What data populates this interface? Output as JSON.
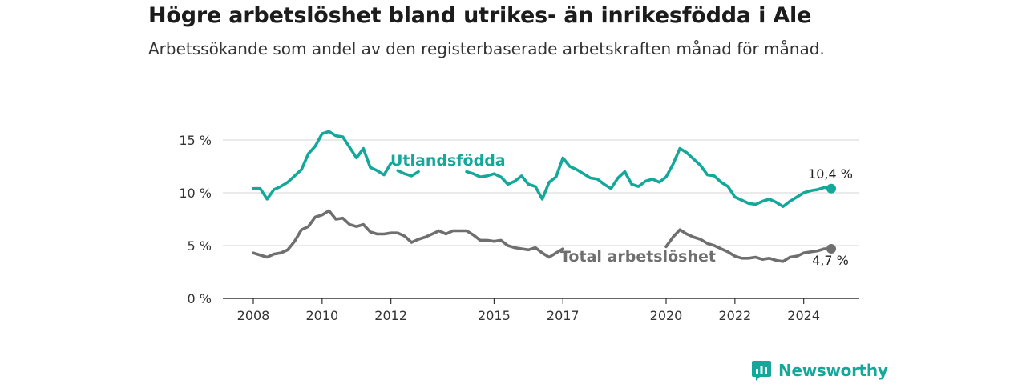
{
  "title": "Högre arbetslöshet bland utrikes- än inrikesfödda i Ale",
  "subtitle": "Arbetssökande som andel av den registerbaserade arbetskraften månad för månad.",
  "logo_text": "Newsworthy",
  "colors": {
    "utlandsfodda": "#14a89a",
    "total": "#6f6f6f",
    "grid": "#d4d4d4",
    "axis": "#333333",
    "brand": "#14a89a"
  },
  "chart_data": {
    "type": "line",
    "title": "",
    "xlabel": "",
    "ylabel": "",
    "ylim": [
      0,
      17
    ],
    "y_ticks": [
      0,
      5,
      10,
      15
    ],
    "y_tick_labels": [
      "0 %",
      "5 %",
      "10 %",
      "15 %"
    ],
    "x_ticks": [
      2008,
      2010,
      2012,
      2015,
      2017,
      2020,
      2022,
      2024
    ],
    "x_tick_labels": [
      "2008",
      "2010",
      "2012",
      "2015",
      "2017",
      "2020",
      "2022",
      "2024"
    ],
    "grid": true,
    "series": [
      {
        "name": "Utlandsfödda",
        "color": "#14a89a",
        "end_label": "10,4 %",
        "points": [
          [
            [
              2008.0,
              10.4
            ],
            [
              2008.2,
              10.4
            ],
            [
              2008.4,
              9.4
            ],
            [
              2008.6,
              10.3
            ],
            [
              2008.8,
              10.6
            ],
            [
              2009.0,
              11.0
            ],
            [
              2009.2,
              11.6
            ],
            [
              2009.4,
              12.2
            ],
            [
              2009.6,
              13.7
            ],
            [
              2009.8,
              14.4
            ],
            [
              2010.0,
              15.6
            ],
            [
              2010.2,
              15.8
            ],
            [
              2010.4,
              15.4
            ],
            [
              2010.6,
              15.3
            ],
            [
              2010.8,
              14.3
            ],
            [
              2011.0,
              13.3
            ],
            [
              2011.2,
              14.2
            ],
            [
              2011.4,
              12.4
            ],
            [
              2011.6,
              12.1
            ],
            [
              2011.8,
              11.7
            ],
            [
              2012.0,
              12.8
            ]
          ],
          [
            [
              2012.2,
              12.1
            ],
            [
              2012.4,
              11.8
            ],
            [
              2012.6,
              11.6
            ],
            [
              2012.8,
              12.0
            ]
          ],
          [
            [
              2014.2,
              12.0
            ],
            [
              2014.4,
              11.8
            ],
            [
              2014.6,
              11.5
            ],
            [
              2014.8,
              11.6
            ],
            [
              2015.0,
              11.8
            ],
            [
              2015.2,
              11.5
            ],
            [
              2015.4,
              10.8
            ],
            [
              2015.6,
              11.1
            ],
            [
              2015.8,
              11.6
            ],
            [
              2016.0,
              10.8
            ],
            [
              2016.2,
              10.6
            ],
            [
              2016.4,
              9.4
            ],
            [
              2016.6,
              11.0
            ],
            [
              2016.8,
              11.5
            ],
            [
              2017.0,
              13.3
            ],
            [
              2017.2,
              12.5
            ],
            [
              2017.4,
              12.2
            ],
            [
              2017.6,
              11.8
            ],
            [
              2017.8,
              11.4
            ],
            [
              2018.0,
              11.3
            ],
            [
              2018.2,
              10.8
            ],
            [
              2018.4,
              10.4
            ],
            [
              2018.6,
              11.4
            ],
            [
              2018.8,
              12.0
            ],
            [
              2019.0,
              10.8
            ],
            [
              2019.2,
              10.6
            ],
            [
              2019.4,
              11.1
            ],
            [
              2019.6,
              11.3
            ],
            [
              2019.8,
              11.0
            ],
            [
              2020.0,
              11.5
            ],
            [
              2020.2,
              12.7
            ],
            [
              2020.4,
              14.2
            ],
            [
              2020.6,
              13.8
            ],
            [
              2020.8,
              13.2
            ],
            [
              2021.0,
              12.6
            ],
            [
              2021.2,
              11.7
            ],
            [
              2021.4,
              11.6
            ],
            [
              2021.6,
              11.0
            ],
            [
              2021.8,
              10.6
            ],
            [
              2022.0,
              9.6
            ],
            [
              2022.2,
              9.3
            ],
            [
              2022.4,
              9.0
            ],
            [
              2022.6,
              8.9
            ],
            [
              2022.8,
              9.2
            ],
            [
              2023.0,
              9.4
            ],
            [
              2023.2,
              9.1
            ],
            [
              2023.4,
              8.7
            ],
            [
              2023.6,
              9.2
            ],
            [
              2023.8,
              9.6
            ],
            [
              2024.0,
              10.0
            ],
            [
              2024.2,
              10.2
            ],
            [
              2024.4,
              10.3
            ],
            [
              2024.6,
              10.5
            ],
            [
              2024.8,
              10.4
            ]
          ]
        ]
      },
      {
        "name": "Total arbetslöshet",
        "color": "#6f6f6f",
        "end_label": "4,7 %",
        "points": [
          [
            [
              2008.0,
              4.3
            ],
            [
              2008.2,
              4.1
            ],
            [
              2008.4,
              3.9
            ],
            [
              2008.6,
              4.2
            ],
            [
              2008.8,
              4.3
            ],
            [
              2009.0,
              4.6
            ],
            [
              2009.2,
              5.4
            ],
            [
              2009.4,
              6.5
            ],
            [
              2009.6,
              6.8
            ],
            [
              2009.8,
              7.7
            ],
            [
              2010.0,
              7.9
            ],
            [
              2010.2,
              8.3
            ],
            [
              2010.4,
              7.5
            ],
            [
              2010.6,
              7.6
            ],
            [
              2010.8,
              7.0
            ],
            [
              2011.0,
              6.8
            ],
            [
              2011.2,
              7.0
            ],
            [
              2011.4,
              6.3
            ],
            [
              2011.6,
              6.1
            ],
            [
              2011.8,
              6.1
            ],
            [
              2012.0,
              6.2
            ],
            [
              2012.2,
              6.2
            ],
            [
              2012.4,
              5.9
            ],
            [
              2012.6,
              5.3
            ],
            [
              2012.8,
              5.6
            ],
            [
              2013.0,
              5.8
            ],
            [
              2013.2,
              6.1
            ],
            [
              2013.4,
              6.4
            ],
            [
              2013.6,
              6.1
            ],
            [
              2013.8,
              6.4
            ],
            [
              2014.0,
              6.4
            ],
            [
              2014.2,
              6.4
            ],
            [
              2014.4,
              6.0
            ],
            [
              2014.6,
              5.5
            ],
            [
              2014.8,
              5.5
            ],
            [
              2015.0,
              5.4
            ],
            [
              2015.2,
              5.5
            ],
            [
              2015.4,
              5.0
            ],
            [
              2015.6,
              4.8
            ],
            [
              2015.8,
              4.7
            ],
            [
              2016.0,
              4.6
            ],
            [
              2016.2,
              4.8
            ],
            [
              2016.4,
              4.3
            ],
            [
              2016.6,
              3.9
            ],
            [
              2016.8,
              4.3
            ],
            [
              2017.0,
              4.7
            ]
          ],
          [
            [
              2020.0,
              4.9
            ],
            [
              2020.2,
              5.8
            ],
            [
              2020.4,
              6.5
            ],
            [
              2020.6,
              6.1
            ],
            [
              2020.8,
              5.8
            ],
            [
              2021.0,
              5.6
            ],
            [
              2021.2,
              5.2
            ],
            [
              2021.4,
              5.0
            ],
            [
              2021.6,
              4.7
            ],
            [
              2021.8,
              4.4
            ],
            [
              2022.0,
              4.0
            ],
            [
              2022.2,
              3.8
            ],
            [
              2022.4,
              3.8
            ],
            [
              2022.6,
              3.9
            ],
            [
              2022.8,
              3.7
            ],
            [
              2023.0,
              3.8
            ],
            [
              2023.2,
              3.6
            ],
            [
              2023.4,
              3.5
            ],
            [
              2023.6,
              3.9
            ],
            [
              2023.8,
              4.0
            ],
            [
              2024.0,
              4.3
            ],
            [
              2024.2,
              4.4
            ],
            [
              2024.4,
              4.5
            ],
            [
              2024.6,
              4.7
            ],
            [
              2024.8,
              4.7
            ]
          ]
        ]
      }
    ]
  }
}
